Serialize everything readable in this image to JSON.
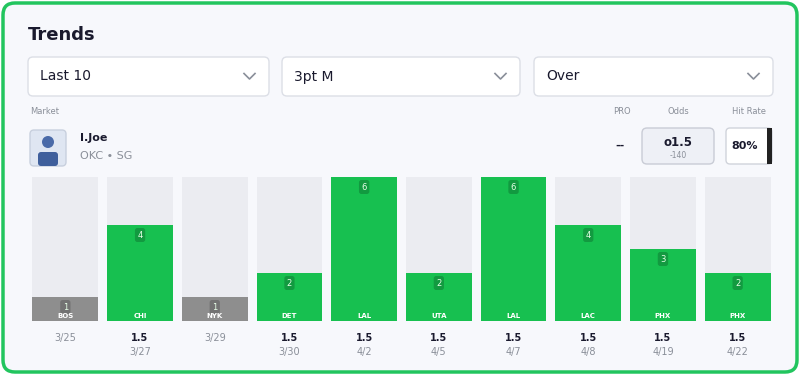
{
  "header": {
    "title": "Trends"
  },
  "filters": [
    "Last 10",
    "3pt M",
    "Over"
  ],
  "market": {
    "label": "Market",
    "player": "I.Joe",
    "team": "OKC • SG"
  },
  "columns": {
    "pro": "PRO",
    "odds": "Odds",
    "hit_rate": "Hit Rate"
  },
  "row": {
    "pro": "--",
    "odds_line": "o1.5",
    "odds_price": "-140",
    "hit_rate": "80%"
  },
  "chart_data": {
    "type": "bar",
    "categories": [
      "BOS",
      "CHI",
      "NYK",
      "DET",
      "LAL",
      "UTA",
      "LAL",
      "LAC",
      "PHX",
      "PHX"
    ],
    "values": [
      1,
      4,
      1,
      2,
      6,
      2,
      6,
      4,
      3,
      2
    ],
    "colors": [
      "#8e8e8e",
      "#17c050",
      "#8e8e8e",
      "#17c050",
      "#17c050",
      "#17c050",
      "#17c050",
      "#17c050",
      "#17c050",
      "#17c050"
    ],
    "lines": [
      null,
      1.5,
      null,
      1.5,
      1.5,
      1.5,
      1.5,
      1.5,
      1.5,
      1.5
    ],
    "dates": [
      "3/25",
      "3/27",
      "3/29",
      "3/30",
      "4/2",
      "4/5",
      "4/7",
      "4/8",
      "4/19",
      "4/22"
    ],
    "ylim": [
      0,
      6
    ],
    "data_labels": true,
    "tick_labels": false
  }
}
